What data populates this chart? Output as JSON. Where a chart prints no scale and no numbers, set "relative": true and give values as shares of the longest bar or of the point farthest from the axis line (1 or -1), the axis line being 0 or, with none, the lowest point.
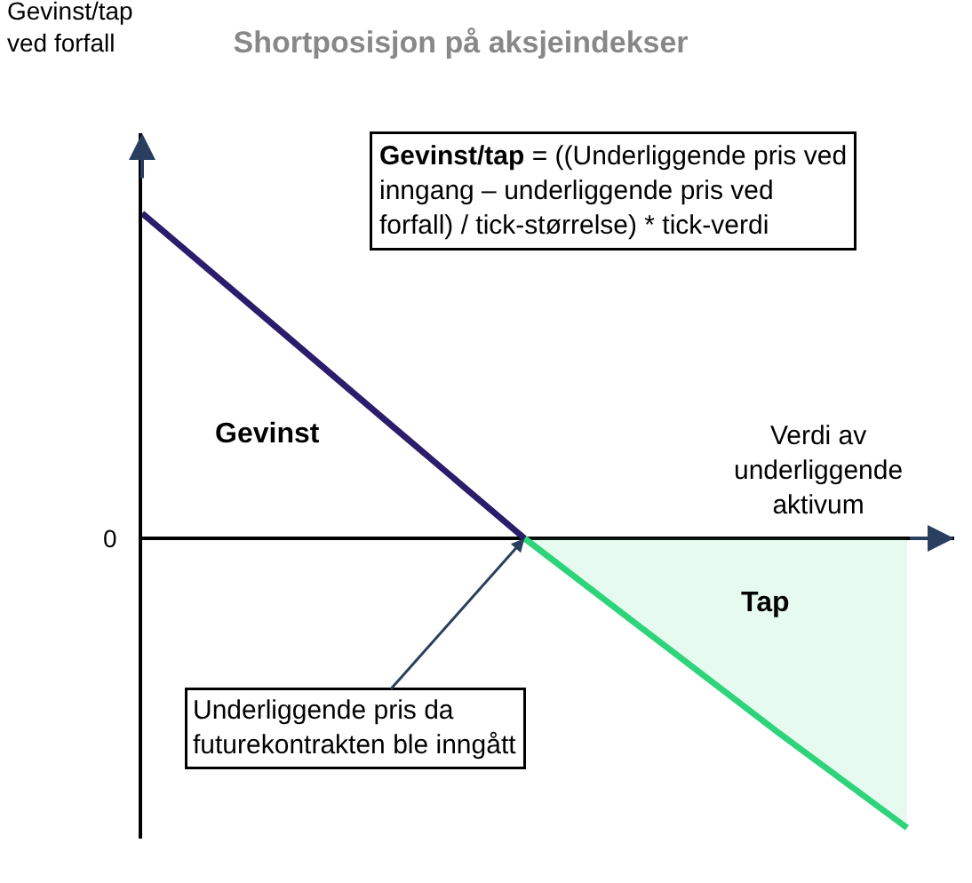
{
  "chart_data": {
    "type": "area",
    "relative": true,
    "title": "Shortposisjon på aksjeindekser",
    "xlabel": "Verdi av underliggende aktivum",
    "categories": [
      null,
      null,
      null,
      null,
      null,
      null,
      null
    ],
    "series": [
      {
        "type": "line",
        "color": "#2b1d6b",
        "values": [
          1,
          0.667,
          0.333,
          0,
          null,
          null,
          null
        ]
      },
      {
        "color": "#2ed47a",
        "values": [
          null,
          null,
          null,
          0,
          -0.3,
          -0.6,
          -0.89
        ]
      }
    ],
    "annotations": [
      "Gevinst/tap = ((Underliggende pris ved inngang – underliggende pris ved forfall) / tick-størrelse) * tick-verdi",
      "Gevinst",
      "Tap",
      "Underliggende pris da futurekontrakten ble inngått",
      "0",
      "Gevinst/tap ved forfall"
    ],
    "legend": false
  }
}
